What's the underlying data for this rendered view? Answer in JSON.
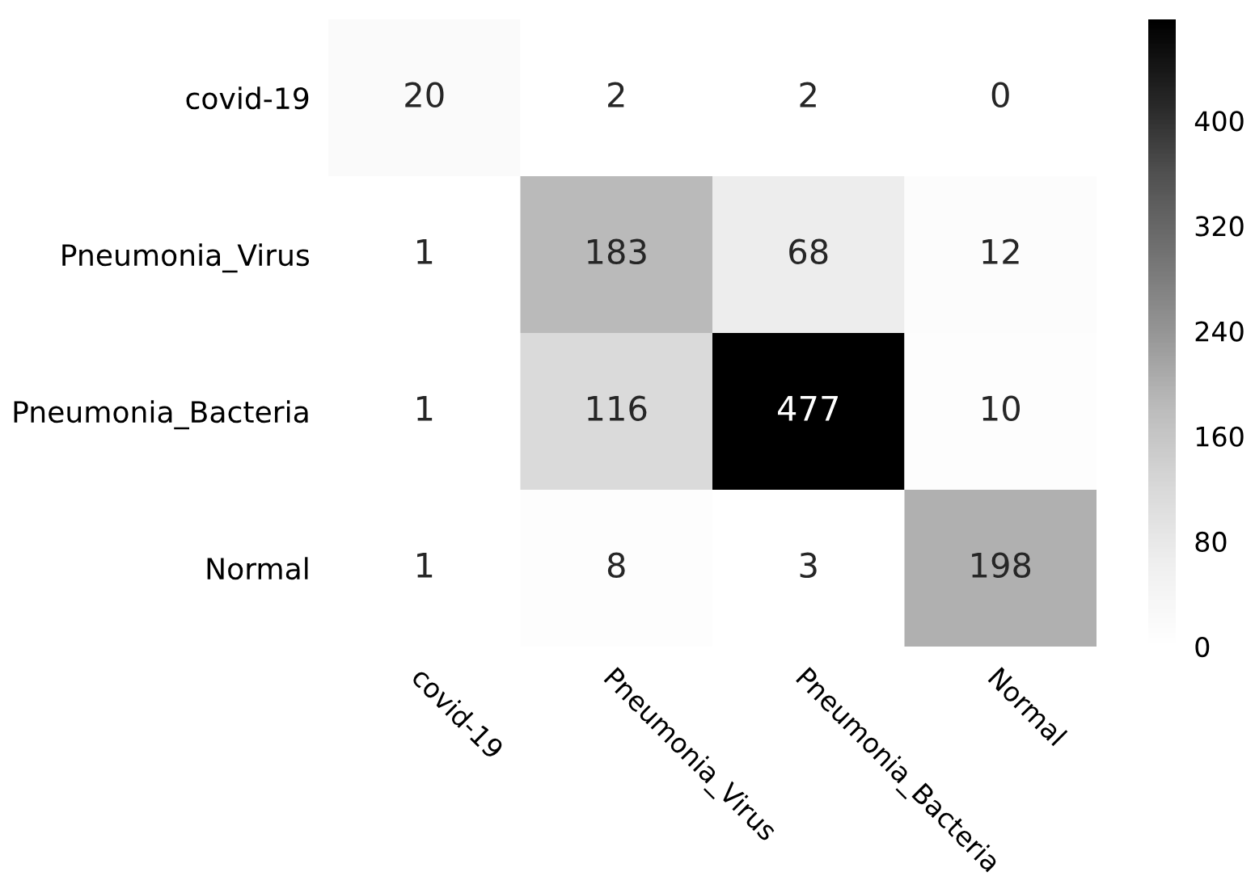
{
  "chart_data": {
    "type": "heatmap",
    "categories": [
      "covid-19",
      "Pneumonia_Virus",
      "Pneumonia_Bacteria",
      "Normal"
    ],
    "y_categories": [
      "covid-19",
      "Pneumonia_Virus",
      "Pneumonia_Bacteria",
      "Normal"
    ],
    "cells": [
      [
        20,
        2,
        2,
        0
      ],
      [
        1,
        183,
        68,
        12
      ],
      [
        1,
        116,
        477,
        10
      ],
      [
        1,
        8,
        3,
        198
      ]
    ],
    "clim": [
      0,
      477
    ],
    "cticks": [
      0,
      80,
      160,
      240,
      320,
      400
    ],
    "data_labels": true
  }
}
